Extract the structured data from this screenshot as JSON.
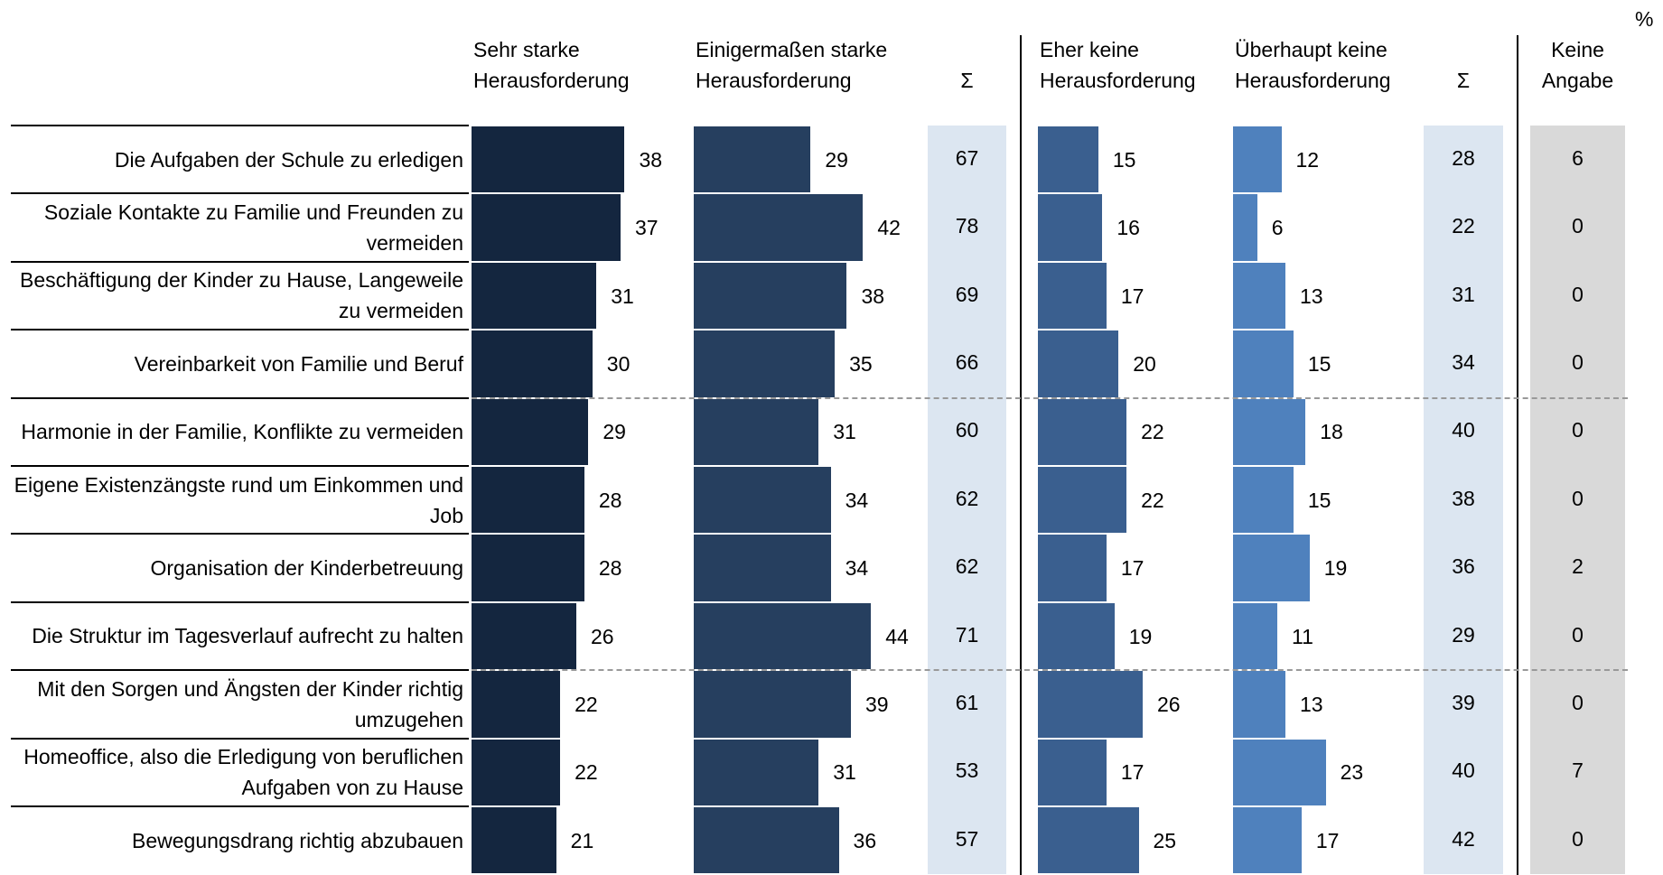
{
  "chart_data": {
    "type": "bar",
    "orientation": "horizontal",
    "unit": "%",
    "categories": [
      "Die Aufgaben der Schule zu erledigen",
      "Soziale Kontakte zu Familie und Freunden zu vermeiden",
      "Beschäftigung der Kinder zu Hause, Langeweile zu vermeiden",
      "Vereinbarkeit von Familie und Beruf",
      "Harmonie in der Familie, Konflikte zu vermeiden",
      "Eigene Existenzängste rund um Einkommen und Job",
      "Organisation der Kinderbetreuung",
      "Die Struktur im Tagesverlauf aufrecht zu halten",
      "Mit den Sorgen und Ängsten der Kinder richtig umzugehen",
      "Homeoffice, also die Erledigung von beruflichen Aufgaben von zu Hause",
      "Bewegungsdrang richtig abzubauen"
    ],
    "series": [
      {
        "name": "Sehr starke Herausforderung",
        "color": "#14263f",
        "values": [
          38,
          37,
          31,
          30,
          29,
          28,
          28,
          26,
          22,
          22,
          21
        ]
      },
      {
        "name": "Einigermaßen starke Herausforderung",
        "color": "#263f5f",
        "values": [
          29,
          42,
          38,
          35,
          31,
          34,
          34,
          44,
          39,
          31,
          36
        ]
      },
      {
        "name": "Eher keine Herausforderung",
        "color": "#3a5f8f",
        "values": [
          15,
          16,
          17,
          20,
          22,
          22,
          17,
          19,
          26,
          17,
          25
        ]
      },
      {
        "name": "Überhaupt keine Herausforderung",
        "color": "#4f81bd",
        "values": [
          12,
          6,
          13,
          15,
          18,
          15,
          19,
          11,
          13,
          23,
          17
        ]
      }
    ],
    "totals": [
      {
        "name": "Σ",
        "color": "#dce6f1",
        "values": [
          67,
          78,
          69,
          66,
          60,
          62,
          62,
          71,
          61,
          53,
          57
        ]
      },
      {
        "name": "Σ",
        "color": "#dce6f1",
        "values": [
          28,
          22,
          31,
          34,
          40,
          38,
          36,
          29,
          39,
          40,
          42
        ]
      }
    ],
    "no_answer": {
      "name": "Keine Angabe",
      "color": "#d9d9d9",
      "values": [
        6,
        0,
        0,
        0,
        0,
        0,
        2,
        0,
        0,
        7,
        0
      ]
    }
  }
}
